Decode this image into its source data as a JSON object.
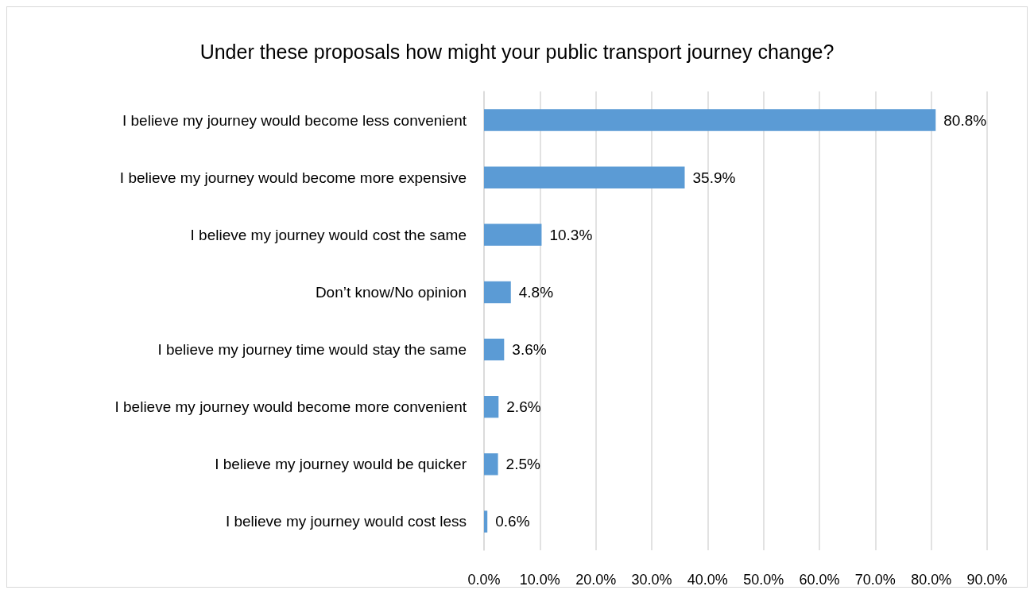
{
  "chart_data": {
    "type": "bar",
    "orientation": "horizontal",
    "title": "Under these proposals how might your public transport journey change?",
    "categories": [
      "I believe my journey would become less convenient",
      "I believe my journey would become more expensive",
      "I believe my journey would cost the same",
      "Don’t know/No opinion",
      "I believe my journey time would stay the same",
      "I believe my journey would become more convenient",
      "I believe my journey would be quicker",
      "I believe my journey would cost less"
    ],
    "values": [
      80.8,
      35.9,
      10.3,
      4.8,
      3.6,
      2.6,
      2.5,
      0.6
    ],
    "value_labels": [
      "80.8%",
      "35.9%",
      "10.3%",
      "4.8%",
      "3.6%",
      "2.6%",
      "2.5%",
      "0.6%"
    ],
    "color": "#5b9bd5",
    "xlim": [
      0,
      90
    ],
    "xticks": [
      {
        "value": 0,
        "label": "0.0%"
      },
      {
        "value": 10,
        "label": "10.0%"
      },
      {
        "value": 20,
        "label": "20.0%"
      },
      {
        "value": 30,
        "label": "30.0%"
      },
      {
        "value": 40,
        "label": "40.0%"
      },
      {
        "value": 50,
        "label": "50.0%"
      },
      {
        "value": 60,
        "label": "60.0%"
      },
      {
        "value": 70,
        "label": "70.0%"
      },
      {
        "value": 80,
        "label": "80.0%"
      },
      {
        "value": 90,
        "label": "90.0%"
      }
    ],
    "grid": "x"
  }
}
